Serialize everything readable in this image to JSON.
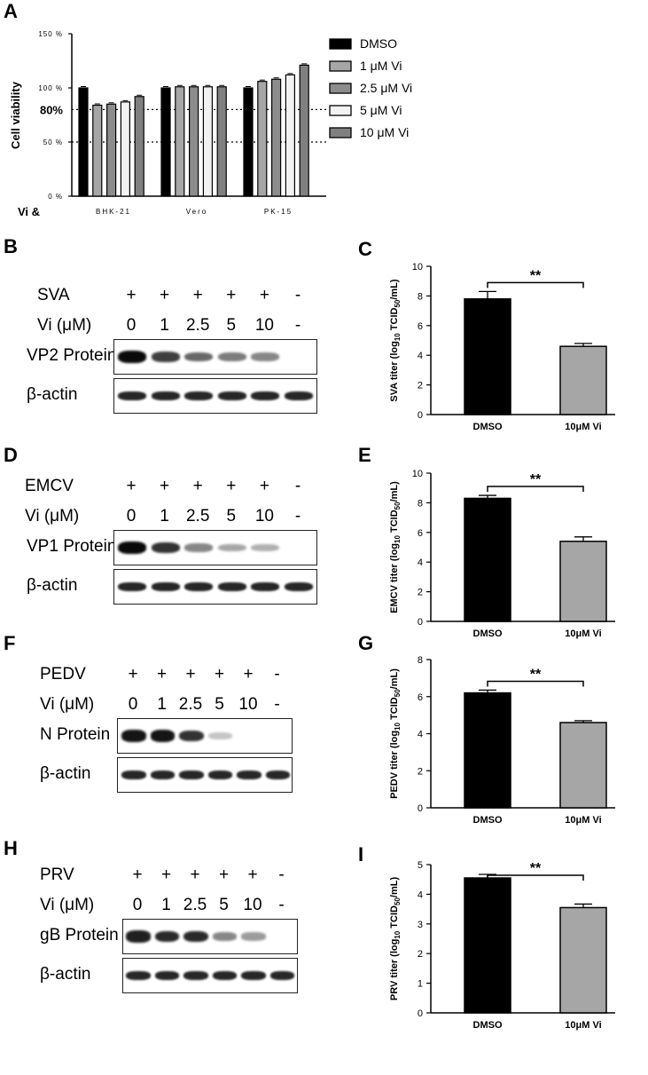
{
  "panels": {
    "A": "A",
    "B": "B",
    "C": "C",
    "D": "D",
    "E": "E",
    "F": "F",
    "G": "G",
    "H": "H",
    "I": "I"
  },
  "panelA": {
    "ylabel": "Cell viability",
    "yticks": [
      "150 %",
      "100 %",
      "80%",
      "50 %",
      "0 %"
    ],
    "row_label": "Vi &",
    "legend": [
      {
        "name": "DMSO",
        "color": "#000000"
      },
      {
        "name": "1 μM Vi",
        "color": "#a6a6a6"
      },
      {
        "name": "2.5 μM Vi",
        "color": "#8c8c8c"
      },
      {
        "name": "5 μM Vi",
        "color": "#f2f2f2"
      },
      {
        "name": "10 μM Vi",
        "color": "#808080"
      }
    ]
  },
  "chart_data": [
    {
      "type": "bar",
      "categories": [
        "BHK-21",
        "Vero",
        "PK-15"
      ],
      "series": [
        {
          "name": "DMSO",
          "values": [
            100,
            100,
            100
          ]
        },
        {
          "name": "1 μM Vi",
          "values": [
            84,
            101,
            106
          ]
        },
        {
          "name": "2.5 μM Vi",
          "values": [
            85,
            101,
            108
          ]
        },
        {
          "name": "5 μM Vi",
          "values": [
            87,
            101,
            112
          ]
        },
        {
          "name": "10 μM Vi",
          "values": [
            92,
            101,
            121
          ]
        }
      ],
      "ylabel": "Cell viability",
      "ylim": [
        0,
        150
      ],
      "yticks": [
        "0 %",
        "50 %",
        "100 %",
        "150 %"
      ],
      "reference_lines": [
        80,
        50
      ]
    },
    {
      "type": "bar",
      "categories": [
        "DMSO",
        "10μM Vi"
      ],
      "values": [
        7.8,
        4.6
      ],
      "errors": [
        0.5,
        0.2
      ],
      "ylabel": "SVA titer (log10 TCID50/mL)",
      "ylim": [
        0,
        10
      ],
      "yticks": [
        0,
        2,
        4,
        6,
        8,
        10
      ],
      "annotation": "**"
    },
    {
      "type": "bar",
      "categories": [
        "DMSO",
        "10μM Vi"
      ],
      "values": [
        8.3,
        5.4
      ],
      "errors": [
        0.2,
        0.3
      ],
      "ylabel": "EMCV titer (log10 TCID50/mL)",
      "ylim": [
        0,
        10
      ],
      "yticks": [
        0,
        2,
        4,
        6,
        8,
        10
      ],
      "annotation": "**"
    },
    {
      "type": "bar",
      "categories": [
        "DMSO",
        "10μM Vi"
      ],
      "values": [
        6.2,
        4.6
      ],
      "errors": [
        0.15,
        0.1
      ],
      "ylabel": "PEDV titer (log10 TCID50/mL)",
      "ylim": [
        0,
        8
      ],
      "yticks": [
        0,
        2,
        4,
        6,
        8
      ],
      "annotation": "**"
    },
    {
      "type": "bar",
      "categories": [
        "DMSO",
        "10μM Vi"
      ],
      "values": [
        4.55,
        3.55
      ],
      "errors": [
        0.12,
        0.12
      ],
      "ylabel": "PRV titer (log10 TCID50/mL)",
      "ylim": [
        0,
        5
      ],
      "yticks": [
        0,
        1,
        2,
        3,
        4,
        5
      ],
      "annotation": "**"
    }
  ],
  "blots": [
    {
      "virus": "SVA",
      "vi_label": "Vi (μM)",
      "infection": [
        "+",
        "+",
        "+",
        "+",
        "+",
        "-"
      ],
      "doses": [
        "0",
        "1",
        "2.5",
        "5",
        "10",
        "-"
      ],
      "protein": "VP2 Protein",
      "loading": "β-actin",
      "intensity": [
        1,
        0.75,
        0.55,
        0.45,
        0.4,
        0
      ]
    },
    {
      "virus": "EMCV",
      "vi_label": "Vi (μM)",
      "infection": [
        "+",
        "+",
        "+",
        "+",
        "+",
        "-"
      ],
      "doses": [
        "0",
        "1",
        "2.5",
        "5",
        "10",
        "-"
      ],
      "protein": "VP1 Protein",
      "loading": "β-actin",
      "intensity": [
        1,
        0.8,
        0.4,
        0.25,
        0.2,
        0
      ]
    },
    {
      "virus": "PEDV",
      "vi_label": "Vi (μM)",
      "infection": [
        "+",
        "+",
        "+",
        "+",
        "+",
        "-"
      ],
      "doses": [
        "0",
        "1",
        "2.5",
        "5",
        "10",
        "-"
      ],
      "protein": "N Protein",
      "loading": "β-actin",
      "intensity": [
        0.95,
        0.95,
        0.8,
        0.1,
        0,
        0
      ]
    },
    {
      "virus": "PRV",
      "vi_label": "Vi (μM)",
      "infection": [
        "+",
        "+",
        "+",
        "+",
        "+",
        "-"
      ],
      "doses": [
        "0",
        "1",
        "2.5",
        "5",
        "10",
        "-"
      ],
      "protein": "gB Protein",
      "loading": "β-actin",
      "intensity": [
        0.9,
        0.85,
        0.85,
        0.4,
        0.3,
        0
      ]
    }
  ]
}
